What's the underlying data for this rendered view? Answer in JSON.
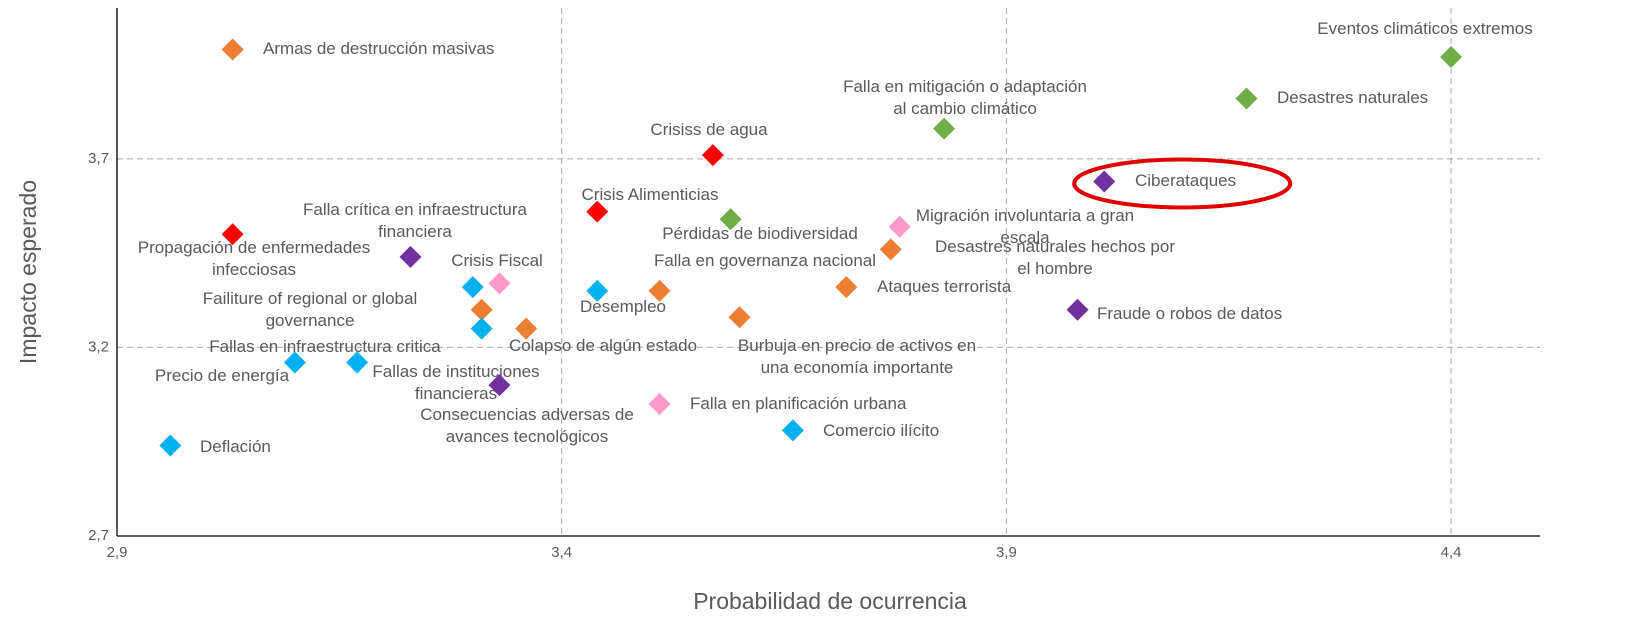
{
  "chart_data": {
    "type": "scatter",
    "xlabel": "Probabilidad de ocurrencia",
    "ylabel": "Impacto esperado",
    "xlim": [
      2.9,
      4.5
    ],
    "ylim": [
      2.7,
      4.1
    ],
    "xticks": [
      {
        "value": 2.9,
        "label": "2,9"
      },
      {
        "value": 3.4,
        "label": "3,4"
      },
      {
        "value": 3.9,
        "label": "3,9"
      },
      {
        "value": 4.4,
        "label": "4,4"
      }
    ],
    "yticks": [
      {
        "value": 2.7,
        "label": "2,7"
      },
      {
        "value": 3.2,
        "label": "3,2"
      },
      {
        "value": 3.7,
        "label": "3,7"
      }
    ],
    "grid": true,
    "x": [
      3.03,
      4.4,
      4.17,
      3.83,
      3.57,
      4.01,
      3.44,
      3.59,
      3.78,
      3.03,
      3.77,
      3.23,
      3.33,
      3.3,
      3.31,
      3.31,
      3.36,
      3.44,
      3.51,
      3.72,
      3.98,
      3.6,
      3.1,
      3.17,
      3.33,
      3.51,
      3.66,
      2.96
    ],
    "values": [
      3.99,
      3.97,
      3.86,
      3.78,
      3.71,
      3.64,
      3.56,
      3.54,
      3.52,
      3.5,
      3.46,
      3.44,
      3.37,
      3.36,
      3.3,
      3.25,
      3.25,
      3.35,
      3.35,
      3.36,
      3.3,
      3.28,
      3.16,
      3.16,
      3.1,
      3.05,
      2.98,
      2.94
    ],
    "colors": [
      "#ed7d31",
      "#70ad47",
      "#70ad47",
      "#70ad47",
      "#ff0000",
      "#7030a0",
      "#ff0000",
      "#70ad47",
      "#ff99cc",
      "#ff0000",
      "#ed7d31",
      "#7030a0",
      "#ff99cc",
      "#00b0f0",
      "#ed7d31",
      "#00b0f0",
      "#ed7d31",
      "#00b0f0",
      "#ed7d31",
      "#ed7d31",
      "#7030a0",
      "#ed7d31",
      "#00b0f0",
      "#00b0f0",
      "#7030a0",
      "#ff99cc",
      "#00b0f0",
      "#00b0f0"
    ],
    "labels": [
      [
        "Armas de destrucción masivas"
      ],
      [
        "Eventos climáticos extremos"
      ],
      [
        "Desastres naturales"
      ],
      [
        "Falla en mitigación o adaptación",
        "al cambio climático"
      ],
      [
        "Crisiss de agua"
      ],
      [
        "Ciberataques"
      ],
      [
        "Crisis Alimenticias"
      ],
      [
        "Pérdidas de biodiversidad"
      ],
      [
        "Migración involuntaria a gran",
        "escala"
      ],
      [
        "Propagación de enfermedades",
        "infecciosas"
      ],
      [
        "Desastres naturales hechos por",
        "el hombre"
      ],
      [
        "Falla crítica en infraestructura",
        "financiera"
      ],
      [
        "Crisis Fiscal"
      ],
      null,
      [
        "Failiture of regional or global",
        "governance"
      ],
      [
        "Fallas de instituciones",
        "financieras"
      ],
      [
        "Colapso de algún estado"
      ],
      [
        "Desempleo"
      ],
      [
        "Falla en governanza nacional"
      ],
      [
        "Ataques terrorista"
      ],
      [
        "Fraude o robos de datos"
      ],
      [
        "Burbuja en precio de activos en",
        "una economía importante"
      ],
      [
        "Precio de energía"
      ],
      [
        "Fallas en infraestructura critica"
      ],
      [
        "Consecuencias adversas de",
        "avances tecnológicos"
      ],
      [
        "Falla en planificación urbana"
      ],
      [
        "Comercio ilícito"
      ],
      [
        "Deflación"
      ]
    ]
  }
}
